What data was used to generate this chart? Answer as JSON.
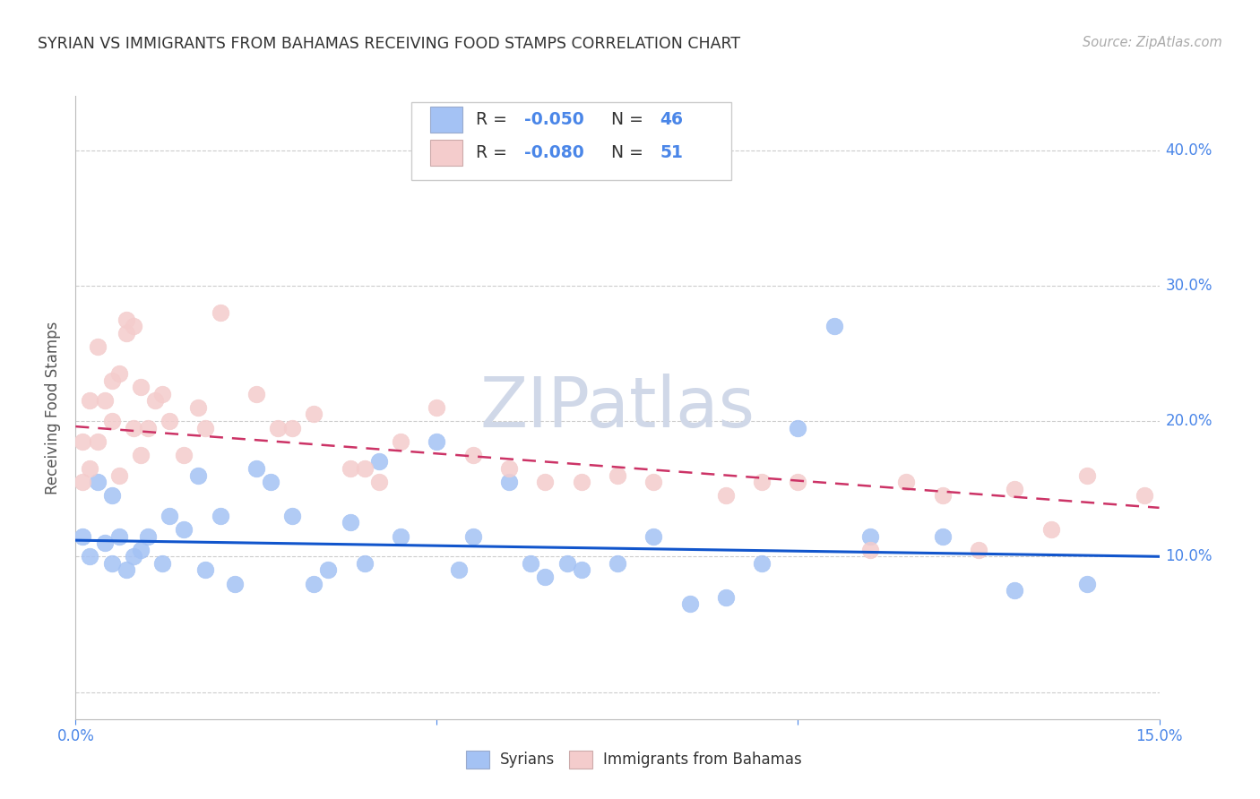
{
  "title": "SYRIAN VS IMMIGRANTS FROM BAHAMAS RECEIVING FOOD STAMPS CORRELATION CHART",
  "source": "Source: ZipAtlas.com",
  "ylabel": "Receiving Food Stamps",
  "xlim": [
    0.0,
    0.15
  ],
  "ylim": [
    -0.02,
    0.44
  ],
  "yticks": [
    0.0,
    0.1,
    0.2,
    0.3,
    0.4
  ],
  "ytick_labels": [
    "",
    "10.0%",
    "20.0%",
    "30.0%",
    "40.0%"
  ],
  "xticks": [
    0.0,
    0.05,
    0.1,
    0.15
  ],
  "xtick_labels": [
    "0.0%",
    "",
    "",
    "15.0%"
  ],
  "blue_color": "#a4c2f4",
  "pink_color": "#f4cccc",
  "blue_line_color": "#1155cc",
  "pink_line_color": "#cc3366",
  "tick_label_color": "#4a86e8",
  "watermark_color": "#d0d8e8",
  "legend_r_blue": "R = -0.050",
  "legend_n_blue": "N = 46",
  "legend_r_pink": "R = -0.080",
  "legend_n_pink": "N = 51",
  "label_blue": "Syrians",
  "label_pink": "Immigrants from Bahamas",
  "syrians_x": [
    0.001,
    0.002,
    0.003,
    0.004,
    0.005,
    0.005,
    0.006,
    0.007,
    0.008,
    0.009,
    0.01,
    0.012,
    0.013,
    0.015,
    0.017,
    0.018,
    0.02,
    0.022,
    0.025,
    0.027,
    0.03,
    0.033,
    0.035,
    0.038,
    0.04,
    0.042,
    0.045,
    0.05,
    0.053,
    0.055,
    0.06,
    0.063,
    0.065,
    0.068,
    0.07,
    0.075,
    0.08,
    0.085,
    0.09,
    0.095,
    0.1,
    0.105,
    0.11,
    0.12,
    0.13,
    0.14
  ],
  "syrians_y": [
    0.115,
    0.1,
    0.155,
    0.11,
    0.145,
    0.095,
    0.115,
    0.09,
    0.1,
    0.105,
    0.115,
    0.095,
    0.13,
    0.12,
    0.16,
    0.09,
    0.13,
    0.08,
    0.165,
    0.155,
    0.13,
    0.08,
    0.09,
    0.125,
    0.095,
    0.17,
    0.115,
    0.185,
    0.09,
    0.115,
    0.155,
    0.095,
    0.085,
    0.095,
    0.09,
    0.095,
    0.115,
    0.065,
    0.07,
    0.095,
    0.195,
    0.27,
    0.115,
    0.115,
    0.075,
    0.08
  ],
  "bahamas_x": [
    0.001,
    0.001,
    0.002,
    0.002,
    0.003,
    0.003,
    0.004,
    0.005,
    0.005,
    0.006,
    0.006,
    0.007,
    0.007,
    0.008,
    0.008,
    0.009,
    0.009,
    0.01,
    0.011,
    0.012,
    0.013,
    0.015,
    0.017,
    0.018,
    0.02,
    0.025,
    0.028,
    0.03,
    0.033,
    0.038,
    0.04,
    0.042,
    0.045,
    0.05,
    0.055,
    0.06,
    0.065,
    0.07,
    0.075,
    0.08,
    0.09,
    0.095,
    0.1,
    0.11,
    0.115,
    0.12,
    0.125,
    0.13,
    0.135,
    0.14,
    0.148
  ],
  "bahamas_y": [
    0.185,
    0.155,
    0.215,
    0.165,
    0.255,
    0.185,
    0.215,
    0.2,
    0.23,
    0.235,
    0.16,
    0.275,
    0.265,
    0.27,
    0.195,
    0.225,
    0.175,
    0.195,
    0.215,
    0.22,
    0.2,
    0.175,
    0.21,
    0.195,
    0.28,
    0.22,
    0.195,
    0.195,
    0.205,
    0.165,
    0.165,
    0.155,
    0.185,
    0.21,
    0.175,
    0.165,
    0.155,
    0.155,
    0.16,
    0.155,
    0.145,
    0.155,
    0.155,
    0.105,
    0.155,
    0.145,
    0.105,
    0.15,
    0.12,
    0.16,
    0.145
  ]
}
